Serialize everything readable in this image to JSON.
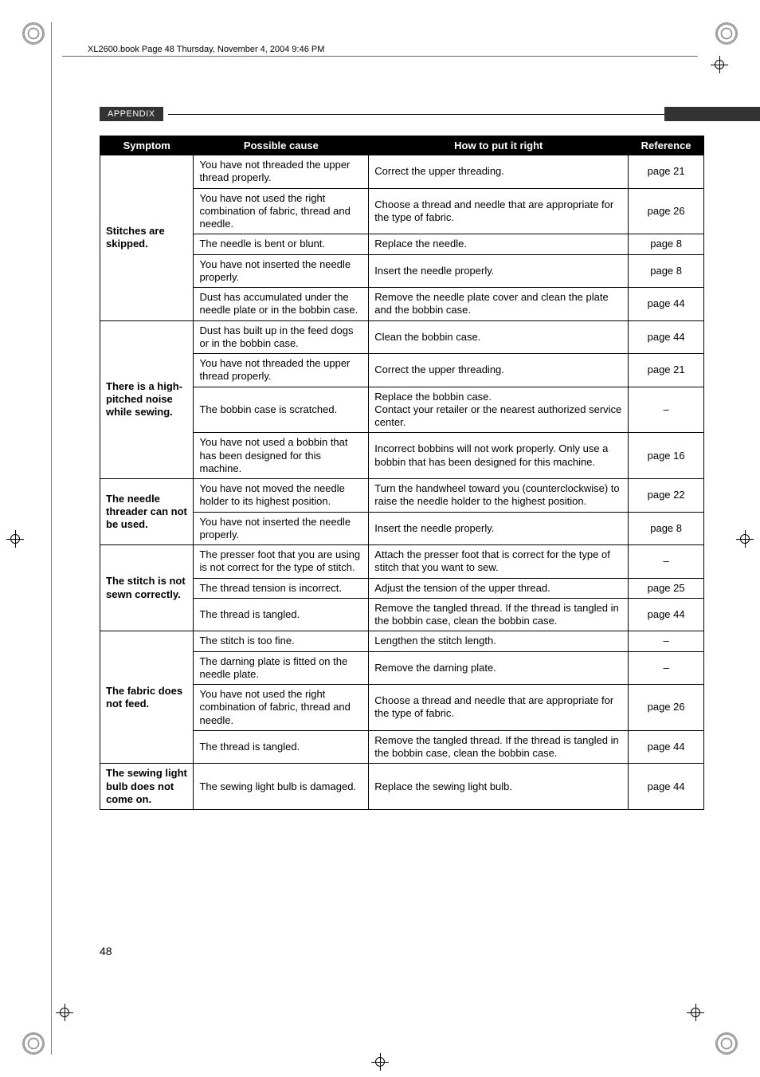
{
  "headerPath": "XL2600.book  Page 48  Thursday, November 4, 2004  9:46 PM",
  "sectionLabel": "APPENDIX",
  "pageNumber": "48",
  "table": {
    "headers": {
      "symptom": "Symptom",
      "cause": "Possible cause",
      "fix": "How to put it right",
      "ref": "Reference"
    },
    "groups": [
      {
        "symptom": "Stitches are skipped.",
        "rows": [
          {
            "cause": "You have not threaded the upper thread properly.",
            "fix": "Correct the upper threading.",
            "ref": "page 21"
          },
          {
            "cause": "You have not used the right combination of fabric, thread and needle.",
            "fix": "Choose a thread and needle that are appropriate for the type of fabric.",
            "ref": "page 26"
          },
          {
            "cause": "The needle is bent or blunt.",
            "fix": "Replace the needle.",
            "ref": "page 8"
          },
          {
            "cause": "You have not inserted the needle properly.",
            "fix": "Insert the needle properly.",
            "ref": "page 8"
          },
          {
            "cause": "Dust has accumulated under the needle plate or in the bobbin case.",
            "fix": "Remove the needle plate cover and clean the plate and the bobbin case.",
            "ref": "page 44"
          }
        ]
      },
      {
        "symptom": "There is a high-pitched noise while sewing.",
        "rows": [
          {
            "cause": "Dust has built up in the feed dogs or in the bobbin case.",
            "fix": "Clean the bobbin case.",
            "ref": "page 44"
          },
          {
            "cause": "You have not threaded the upper thread properly.",
            "fix": "Correct the upper threading.",
            "ref": "page 21"
          },
          {
            "cause": "The bobbin case is scratched.",
            "fix": "Replace the bobbin case.\nContact your retailer or the nearest authorized service center.",
            "ref": "–"
          },
          {
            "cause": "You have not used a bobbin that has been designed for this machine.",
            "fix": "Incorrect bobbins will not work properly. Only use a bobbin that has been designed for this machine.",
            "ref": "page 16"
          }
        ]
      },
      {
        "symptom": "The needle threader can not be used.",
        "rows": [
          {
            "cause": "You have not moved the needle holder to its highest position.",
            "fix": "Turn the handwheel toward you (counterclockwise) to raise the needle holder to the highest position.",
            "ref": "page 22"
          },
          {
            "cause": "You have not inserted the needle properly.",
            "fix": "Insert the needle properly.",
            "ref": "page 8"
          }
        ]
      },
      {
        "symptom": "The stitch is not sewn correctly.",
        "rows": [
          {
            "cause": "The presser foot that you are using is not correct for the type of stitch.",
            "fix": "Attach the presser foot that is correct for the type of stitch that you want to sew.",
            "ref": "–"
          },
          {
            "cause": "The thread tension is incorrect.",
            "fix": "Adjust the tension of the upper thread.",
            "ref": "page 25"
          },
          {
            "cause": "The thread is tangled.",
            "fix": "Remove the tangled thread. If the thread is tangled in the bobbin case, clean the bobbin case.",
            "ref": "page 44"
          }
        ]
      },
      {
        "symptom": "The fabric does not feed.",
        "rows": [
          {
            "cause": "The stitch is too fine.",
            "fix": "Lengthen the stitch length.",
            "ref": "–"
          },
          {
            "cause": "The darning plate is fitted on the needle plate.",
            "fix": "Remove the darning plate.",
            "ref": "–"
          },
          {
            "cause": "You have not used the right combination of fabric, thread and needle.",
            "fix": "Choose a thread and needle that are appropriate for the type of fabric.",
            "ref": "page 26"
          },
          {
            "cause": "The thread is tangled.",
            "fix": "Remove the tangled thread. If the thread is tangled in the bobbin case, clean the bobbin case.",
            "ref": "page 44"
          }
        ]
      },
      {
        "symptom": "The sewing light bulb does not come on.",
        "rows": [
          {
            "cause": "The sewing light bulb is damaged.",
            "fix": "Replace the sewing light bulb.",
            "ref": "page 44"
          }
        ]
      }
    ]
  },
  "colors": {
    "headerBg": "#000000",
    "headerText": "#ffffff",
    "cellBorder": "#000000",
    "sectionBg": "#333333"
  }
}
